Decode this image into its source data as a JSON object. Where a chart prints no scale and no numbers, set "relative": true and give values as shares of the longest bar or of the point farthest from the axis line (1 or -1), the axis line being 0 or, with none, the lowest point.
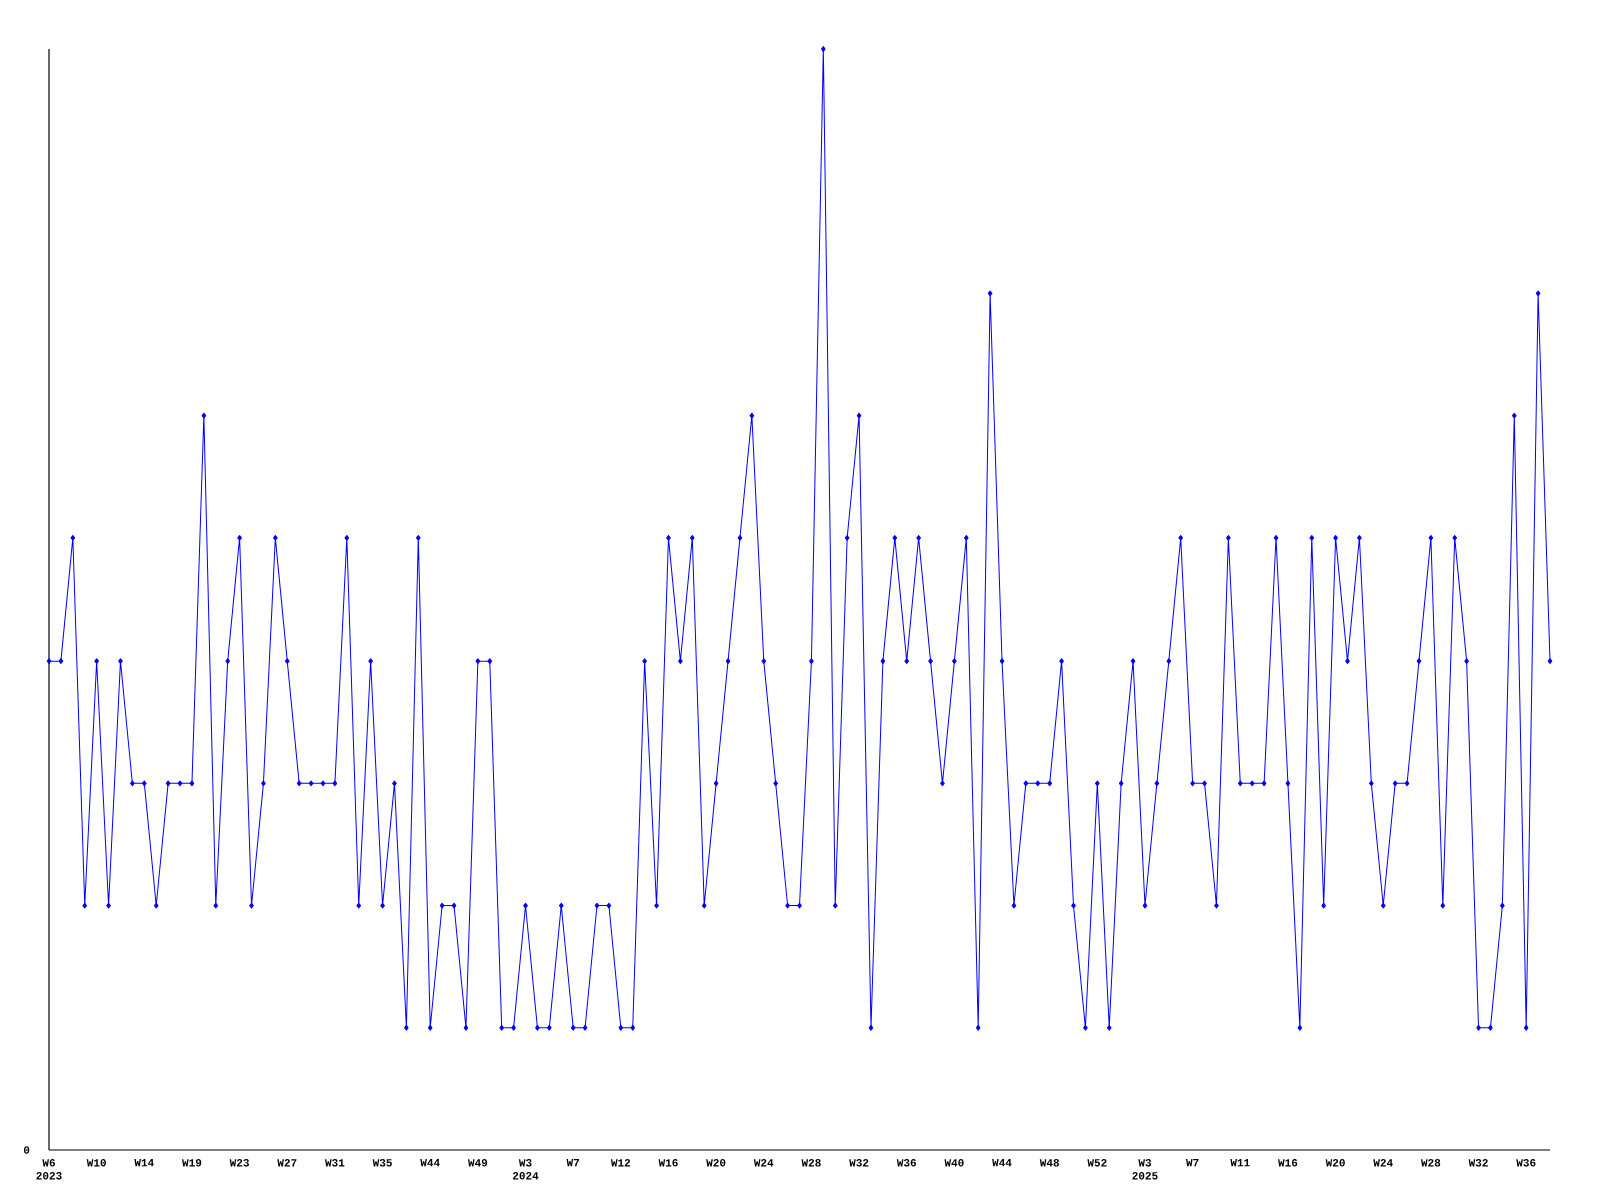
{
  "chart_data": {
    "type": "line",
    "relative": true,
    "marker": "diamond",
    "color": "#0000ff",
    "annotations": [
      "0"
    ],
    "categories": [
      "W6 2023",
      null,
      null,
      null,
      "W10",
      null,
      null,
      null,
      "W14",
      null,
      null,
      null,
      "W19",
      null,
      null,
      null,
      "W23",
      null,
      null,
      null,
      "W27",
      null,
      null,
      null,
      "W31",
      null,
      null,
      null,
      "W35",
      null,
      null,
      null,
      "W44",
      null,
      null,
      null,
      "W49",
      null,
      null,
      null,
      "W3 2024",
      null,
      null,
      null,
      "W7",
      null,
      null,
      null,
      "W12",
      null,
      null,
      null,
      "W16",
      null,
      null,
      null,
      "W20",
      null,
      null,
      null,
      "W24",
      null,
      null,
      null,
      "W28",
      null,
      null,
      null,
      "W32",
      null,
      null,
      null,
      "W36",
      null,
      null,
      null,
      "W40",
      null,
      null,
      null,
      "W44",
      null,
      null,
      null,
      "W48",
      null,
      null,
      null,
      "W52",
      null,
      null,
      null,
      "W3 2025",
      null,
      null,
      null,
      "W7",
      null,
      null,
      null,
      "W11",
      null,
      null,
      null,
      "W16",
      null,
      null,
      null,
      "W20",
      null,
      null,
      null,
      "W24",
      null,
      null,
      null,
      "W28",
      null,
      null,
      null,
      "W32",
      null,
      null,
      null,
      "W36",
      null,
      null
    ],
    "values": [
      0.444,
      0.444,
      0.556,
      0.222,
      0.444,
      0.222,
      0.444,
      0.333,
      0.333,
      0.222,
      0.333,
      0.333,
      0.333,
      0.667,
      0.222,
      0.444,
      0.556,
      0.222,
      0.333,
      0.556,
      0.444,
      0.333,
      0.333,
      0.333,
      0.333,
      0.556,
      0.222,
      0.444,
      0.222,
      0.333,
      0.111,
      0.556,
      0.111,
      0.222,
      0.222,
      0.111,
      0.444,
      0.444,
      0.111,
      0.111,
      0.222,
      0.111,
      0.111,
      0.222,
      0.111,
      0.111,
      0.222,
      0.222,
      0.111,
      0.111,
      0.444,
      0.222,
      0.556,
      0.444,
      0.556,
      0.222,
      0.333,
      0.444,
      0.556,
      0.667,
      0.444,
      0.333,
      0.222,
      0.222,
      0.444,
      1,
      0.222,
      0.556,
      0.667,
      0.111,
      0.444,
      0.556,
      0.444,
      0.556,
      0.444,
      0.333,
      0.444,
      0.556,
      0.111,
      0.778,
      0.444,
      0.222,
      0.333,
      0.333,
      0.333,
      0.444,
      0.222,
      0.111,
      0.333,
      0.111,
      0.333,
      0.444,
      0.222,
      0.333,
      0.444,
      0.556,
      0.333,
      0.333,
      0.222,
      0.556,
      0.333,
      0.333,
      0.333,
      0.556,
      0.333,
      0.111,
      0.556,
      0.222,
      0.556,
      0.444,
      0.556,
      0.333,
      0.222,
      0.333,
      0.333,
      0.444,
      0.556,
      0.222,
      0.556,
      0.444,
      0.111,
      0.111,
      0.222,
      0.667,
      0.111,
      0.778,
      0.444
    ]
  }
}
